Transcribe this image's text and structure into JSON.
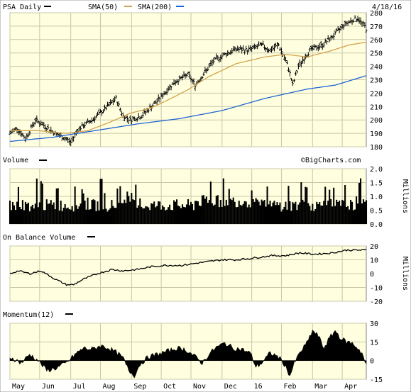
{
  "chart_data": [
    {
      "type": "line",
      "header": {
        "title": "PSA Daily",
        "sma50_label": "SMA(50)",
        "sma200_label": "SMA(200)",
        "date": "4/18/16"
      },
      "watermark": "©BigCharts.com",
      "ylim": [
        180,
        280
      ],
      "yticks": [
        "280",
        "270",
        "260",
        "250",
        "240",
        "230",
        "220",
        "210",
        "200",
        "190",
        "180"
      ],
      "grid": true,
      "colors": {
        "price": "#000000",
        "sma50": "#d4a04a",
        "sma200": "#1e62d4",
        "bg": "#ffffe0"
      },
      "months": [
        "May",
        "Jun",
        "Jul",
        "Aug",
        "Sep",
        "Oct",
        "Nov",
        "Dec",
        "16",
        "Feb",
        "Mar",
        "Apr"
      ],
      "month_index": [
        0,
        21,
        43,
        64,
        86,
        107,
        128,
        150,
        171,
        192,
        214,
        235
      ],
      "price_anchors": [
        [
          0,
          190
        ],
        [
          5,
          194
        ],
        [
          11,
          186
        ],
        [
          18,
          200
        ],
        [
          24,
          196
        ],
        [
          32,
          190
        ],
        [
          41,
          185
        ],
        [
          43,
          183
        ],
        [
          48,
          193
        ],
        [
          58,
          200
        ],
        [
          67,
          208
        ],
        [
          75,
          216
        ],
        [
          80,
          203
        ],
        [
          85,
          200
        ],
        [
          93,
          203
        ],
        [
          104,
          214
        ],
        [
          116,
          228
        ],
        [
          126,
          234
        ],
        [
          131,
          226
        ],
        [
          144,
          244
        ],
        [
          152,
          249
        ],
        [
          160,
          253
        ],
        [
          168,
          252
        ],
        [
          178,
          256
        ],
        [
          184,
          252
        ],
        [
          190,
          256
        ],
        [
          197,
          239
        ],
        [
          200,
          226
        ],
        [
          204,
          240
        ],
        [
          212,
          252
        ],
        [
          221,
          256
        ],
        [
          230,
          264
        ],
        [
          236,
          271
        ],
        [
          243,
          275
        ],
        [
          246,
          276
        ],
        [
          249,
          272
        ],
        [
          251,
          270
        ],
        [
          252,
          268
        ]
      ],
      "sma50_anchors": [
        [
          0,
          192
        ],
        [
          20,
          192
        ],
        [
          40,
          190
        ],
        [
          55,
          192
        ],
        [
          70,
          198
        ],
        [
          85,
          205
        ],
        [
          100,
          209
        ],
        [
          110,
          214
        ],
        [
          125,
          222
        ],
        [
          140,
          232
        ],
        [
          160,
          242
        ],
        [
          180,
          247
        ],
        [
          195,
          249
        ],
        [
          210,
          247
        ],
        [
          225,
          251
        ],
        [
          240,
          256
        ],
        [
          252,
          258
        ]
      ],
      "sma200_anchors": [
        [
          0,
          184
        ],
        [
          30,
          187
        ],
        [
          60,
          192
        ],
        [
          90,
          197
        ],
        [
          120,
          201
        ],
        [
          150,
          207
        ],
        [
          180,
          216
        ],
        [
          210,
          223
        ],
        [
          230,
          226
        ],
        [
          252,
          233
        ]
      ]
    },
    {
      "type": "bar",
      "title": "Volume",
      "ylim": [
        0,
        2.0
      ],
      "yticks": [
        "2.0",
        "1.5",
        "1.0",
        "0.5",
        "0.0"
      ],
      "ylabel": "Millions",
      "grid": true
    },
    {
      "type": "line",
      "title": "On Balance Volume",
      "ylim": [
        -20,
        20
      ],
      "yticks": [
        "20",
        "10",
        "0",
        "-10",
        "-20"
      ],
      "ylabel": "Millions",
      "grid": true,
      "anchors": [
        [
          0,
          0
        ],
        [
          6,
          2
        ],
        [
          14,
          0
        ],
        [
          22,
          2
        ],
        [
          32,
          -4
        ],
        [
          40,
          -8
        ],
        [
          45,
          -8
        ],
        [
          52,
          -4
        ],
        [
          62,
          0
        ],
        [
          72,
          3
        ],
        [
          80,
          2
        ],
        [
          90,
          3
        ],
        [
          100,
          5
        ],
        [
          110,
          6
        ],
        [
          122,
          6
        ],
        [
          135,
          8
        ],
        [
          150,
          10
        ],
        [
          160,
          10
        ],
        [
          170,
          11
        ],
        [
          185,
          13
        ],
        [
          195,
          13
        ],
        [
          205,
          15
        ],
        [
          215,
          14
        ],
        [
          228,
          15
        ],
        [
          238,
          17
        ],
        [
          252,
          17
        ]
      ]
    },
    {
      "type": "area",
      "title": "Momentum(12)",
      "ylim": [
        -15,
        30
      ],
      "yticks": [
        "30",
        "15",
        "0",
        "-15"
      ],
      "grid": true,
      "anchors": [
        [
          0,
          3
        ],
        [
          8,
          -2
        ],
        [
          14,
          5
        ],
        [
          20,
          0
        ],
        [
          26,
          -8
        ],
        [
          33,
          -6
        ],
        [
          40,
          -2
        ],
        [
          46,
          5
        ],
        [
          52,
          10
        ],
        [
          58,
          9
        ],
        [
          64,
          12
        ],
        [
          70,
          10
        ],
        [
          76,
          6
        ],
        [
          80,
          2
        ],
        [
          84,
          -8
        ],
        [
          88,
          -12
        ],
        [
          92,
          -3
        ],
        [
          98,
          3
        ],
        [
          104,
          5
        ],
        [
          110,
          7
        ],
        [
          118,
          10
        ],
        [
          124,
          9
        ],
        [
          130,
          4
        ],
        [
          136,
          -2
        ],
        [
          140,
          4
        ],
        [
          145,
          10
        ],
        [
          152,
          14
        ],
        [
          158,
          10
        ],
        [
          164,
          9
        ],
        [
          170,
          6
        ],
        [
          174,
          -5
        ],
        [
          178,
          -2
        ],
        [
          184,
          6
        ],
        [
          190,
          3
        ],
        [
          194,
          -3
        ],
        [
          198,
          -12
        ],
        [
          202,
          0
        ],
        [
          206,
          8
        ],
        [
          210,
          14
        ],
        [
          214,
          24
        ],
        [
          218,
          20
        ],
        [
          222,
          10
        ],
        [
          226,
          18
        ],
        [
          230,
          24
        ],
        [
          234,
          18
        ],
        [
          238,
          15
        ],
        [
          242,
          14
        ],
        [
          246,
          10
        ],
        [
          249,
          6
        ],
        [
          252,
          -4
        ]
      ]
    }
  ]
}
